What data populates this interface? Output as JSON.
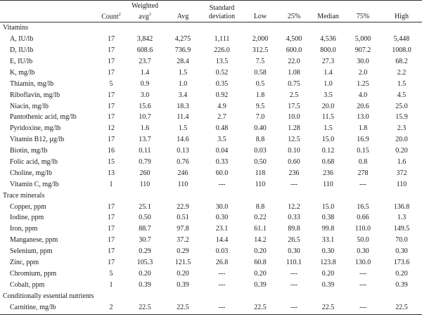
{
  "header": {
    "blank": "",
    "count": "Count",
    "count_sup": "2",
    "weighted_line1": "Weighted",
    "weighted_line2": "avg",
    "weighted_sup": "3",
    "avg": "Avg",
    "sd_line1": "Standard",
    "sd_line2": "deviation",
    "low": "Low",
    "p25": "25%",
    "median": "Median",
    "p75": "75%",
    "high": "High"
  },
  "groups": [
    {
      "title": "Vitamins",
      "rows": [
        {
          "label": "A, IU/lb",
          "count": "17",
          "wavg": "3,842",
          "avg": "4,275",
          "sd": "1,111",
          "low": "2,000",
          "p25": "4,500",
          "median": "4,536",
          "p75": "5,000",
          "high": "5,448"
        },
        {
          "label": "D, IU/lb",
          "count": "17",
          "wavg": "608.6",
          "avg": "736.9",
          "sd": "226.0",
          "low": "312.5",
          "p25": "600.0",
          "median": "800.0",
          "p75": "907.2",
          "high": "1008.0"
        },
        {
          "label": "E, IU/lb",
          "count": "17",
          "wavg": "23.7",
          "avg": "28.4",
          "sd": "13.5",
          "low": "7.5",
          "p25": "22.0",
          "median": "27.3",
          "p75": "30.0",
          "high": "68.2"
        },
        {
          "label": "K, mg/lb",
          "count": "17",
          "wavg": "1.4",
          "avg": "1.5",
          "sd": "0.52",
          "low": "0.58",
          "p25": "1.08",
          "median": "1.4",
          "p75": "2.0",
          "high": "2.2"
        },
        {
          "label": "Thiamin, mg/lb",
          "count": "5",
          "wavg": "0.9",
          "avg": "1.0",
          "sd": "0.35",
          "low": "0.5",
          "p25": "0.75",
          "median": "1.0",
          "p75": "1.25",
          "high": "1.5"
        },
        {
          "label": "Riboflavin, mg/lb",
          "count": "17",
          "wavg": "3.0",
          "avg": "3.4",
          "sd": "0.92",
          "low": "1.8",
          "p25": "2.5",
          "median": "3.5",
          "p75": "4.0",
          "high": "4.5"
        },
        {
          "label": "Niacin, mg/lb",
          "count": "17",
          "wavg": "15.6",
          "avg": "18.3",
          "sd": "4.9",
          "low": "9.5",
          "p25": "17.5",
          "median": "20.0",
          "p75": "20.6",
          "high": "25.0"
        },
        {
          "label": "Pantothenic acid, mg/lb",
          "count": "17",
          "wavg": "10.7",
          "avg": "11.4",
          "sd": "2.7",
          "low": "7.0",
          "p25": "10.0",
          "median": "11.5",
          "p75": "13.0",
          "high": "15.9"
        },
        {
          "label": "Pyridoxine, mg/lb",
          "count": "12",
          "wavg": "1.6",
          "avg": "1.5",
          "sd": "0.48",
          "low": "0.40",
          "p25": "1.28",
          "median": "1.5",
          "p75": "1.8",
          "high": "2.3"
        },
        {
          "label": "Vitamin B12, μg/lb",
          "count": "17",
          "wavg": "13.7",
          "avg": "14.6",
          "sd": "3.5",
          "low": "8.8",
          "p25": "12.5",
          "median": "15.0",
          "p75": "16.9",
          "high": "20.0"
        },
        {
          "label": "Biotin, mg/lb",
          "count": "16",
          "wavg": "0.11",
          "avg": "0.13",
          "sd": "0.04",
          "low": "0.03",
          "p25": "0.10",
          "median": "0.12",
          "p75": "0.15",
          "high": "0.20"
        },
        {
          "label": "Folic acid, mg/lb",
          "count": "15",
          "wavg": "0.79",
          "avg": "0.76",
          "sd": "0.33",
          "low": "0.50",
          "p25": "0.60",
          "median": "0.68",
          "p75": "0.8",
          "high": "1.6"
        },
        {
          "label": "Choline, mg/lb",
          "count": "13",
          "wavg": "260",
          "avg": "246",
          "sd": "60.0",
          "low": "118",
          "p25": "236",
          "median": "236",
          "p75": "278",
          "high": "372"
        },
        {
          "label": "Vitamin C, mg/lb",
          "count": "1",
          "wavg": "110",
          "avg": "110",
          "sd": "---",
          "low": "110",
          "p25": "---",
          "median": "110",
          "p75": "---",
          "high": "110"
        }
      ]
    },
    {
      "title": "Trace minerals",
      "rows": [
        {
          "label": "Copper, ppm",
          "count": "17",
          "wavg": "25.1",
          "avg": "22.9",
          "sd": "30.0",
          "low": "8.8",
          "p25": "12.2",
          "median": "15.0",
          "p75": "16.5",
          "high": "136.8"
        },
        {
          "label": "Iodine, ppm",
          "count": "17",
          "wavg": "0.50",
          "avg": "0.51",
          "sd": "0.30",
          "low": "0.22",
          "p25": "0.33",
          "median": "0.38",
          "p75": "0.66",
          "high": "1.3"
        },
        {
          "label": "Iron, ppm",
          "count": "17",
          "wavg": "88.7",
          "avg": "97.8",
          "sd": "23.1",
          "low": "61.1",
          "p25": "89.8",
          "median": "99.8",
          "p75": "110.0",
          "high": "149.5"
        },
        {
          "label": "Manganese, ppm",
          "count": "17",
          "wavg": "30.7",
          "avg": "37.2",
          "sd": "14.4",
          "low": "14.2",
          "p25": "26.5",
          "median": "33.1",
          "p75": "50.0",
          "high": "70.0"
        },
        {
          "label": "Selenium, ppm",
          "count": "17",
          "wavg": "0.29",
          "avg": "0.29",
          "sd": "0.03",
          "low": "0.20",
          "p25": "0.30",
          "median": "0.30",
          "p75": "0.30",
          "high": "0.30"
        },
        {
          "label": "Zinc, ppm",
          "count": "17",
          "wavg": "105.3",
          "avg": "121.5",
          "sd": "26.8",
          "low": "60.8",
          "p25": "110.1",
          "median": "123.8",
          "p75": "130.0",
          "high": "173.6"
        },
        {
          "label": "Chromium, ppm",
          "count": "5",
          "wavg": "0.20",
          "avg": "0.20",
          "sd": "---",
          "low": "0.20",
          "p25": "---",
          "median": "0.20",
          "p75": "---",
          "high": "0.20"
        },
        {
          "label": "Cobalt, ppm",
          "count": "1",
          "wavg": "0.39",
          "avg": "0.39",
          "sd": "---",
          "low": "0.39",
          "p25": "---",
          "median": "0.39",
          "p75": "---",
          "high": "0.39"
        }
      ]
    },
    {
      "title": "Conditionally essential nutrients",
      "rows": [
        {
          "label": "Carnitine, mg/lb",
          "count": "2",
          "wavg": "22.5",
          "avg": "22.5",
          "sd": "---",
          "low": "22.5",
          "p25": "---",
          "median": "22.5",
          "p75": "---",
          "high": "22.5"
        }
      ]
    }
  ]
}
